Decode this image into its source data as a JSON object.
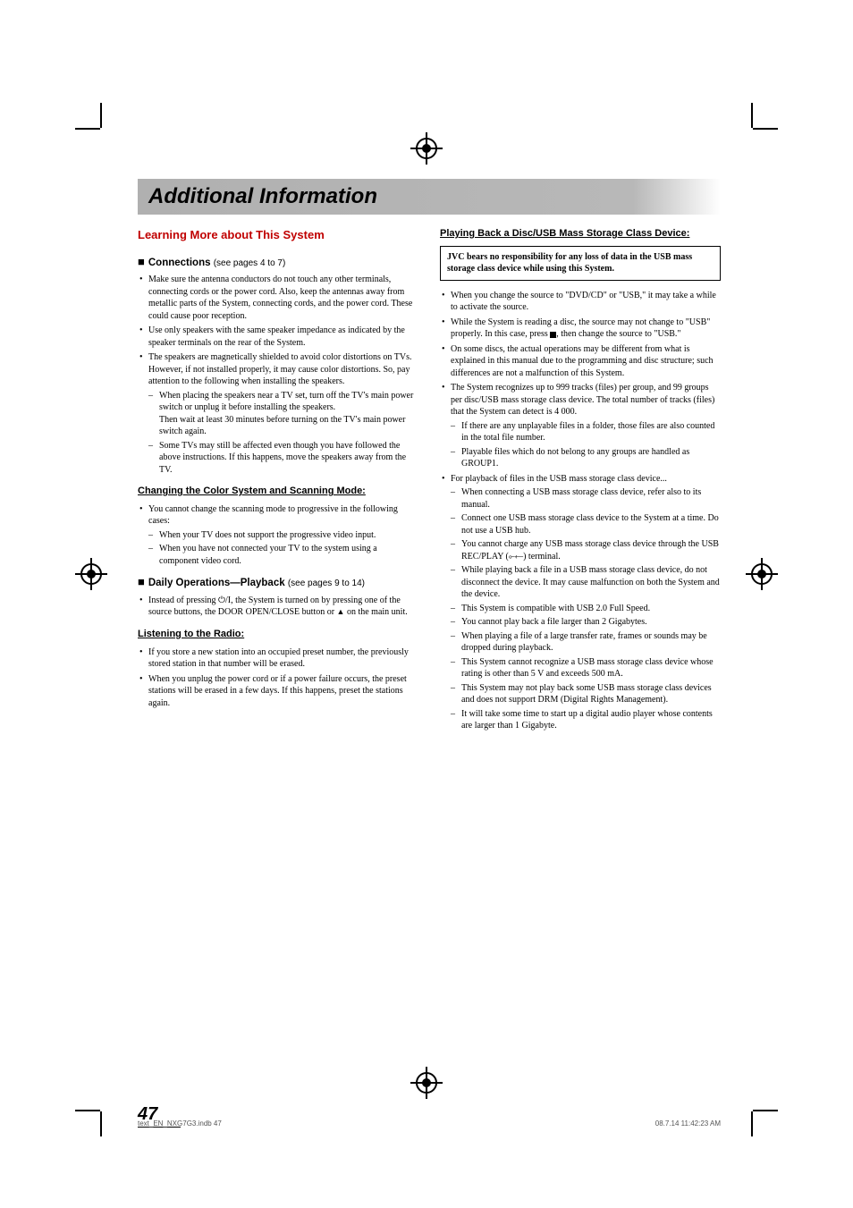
{
  "title": "Additional Information",
  "section_title": "Learning More about This System",
  "left": {
    "h_connections": "Connections",
    "h_connections_ref": "(see pages 4 to 7)",
    "conn_1": "Make sure the antenna conductors do not touch any other terminals, connecting cords or the power cord. Also, keep the antennas away from metallic parts of the System, connecting cords, and the power cord. These could cause poor reception.",
    "conn_2": "Use only speakers with the same speaker impedance as indicated by the speaker terminals on the rear of the System.",
    "conn_3": "The speakers are magnetically shielded to avoid color distortions on TVs. However, if not installed properly, it may cause color distortions. So, pay attention to the following when installing the speakers.",
    "conn_3a": "When placing the speakers near a TV set, turn off the TV's main power switch or unplug it before installing the speakers.",
    "conn_3a2": "Then wait at least 30 minutes before turning on the TV's main power switch again.",
    "conn_3b": "Some TVs may still be affected even though you have followed the above instructions. If this happens, move the speakers away from the TV.",
    "h_changing": "Changing the Color System and Scanning Mode:",
    "chg_1": "You cannot change the scanning mode to progressive in the following cases:",
    "chg_1a": "When your TV does not support the progressive video input.",
    "chg_1b": "When you have not connected your TV to the system using a component video cord.",
    "h_daily": "Daily Operations—Playback",
    "h_daily_ref": "(see pages 9 to 14)",
    "daily_1a": "Instead of pressing ",
    "daily_1b": ", the System is turned on by pressing one of the source buttons, the DOOR OPEN/CLOSE button or ",
    "daily_1c": " on the main unit.",
    "h_listening": "Listening to the Radio:",
    "listen_1": "If you store a new station into an occupied preset number, the previously stored station in that number will be erased.",
    "listen_2": "When you unplug the power cord or if a power failure occurs, the preset stations will be erased in a few days. If this happens, preset the stations again."
  },
  "right": {
    "h_playback": "Playing Back a Disc/USB Mass Storage Class Device:",
    "notebox": "JVC bears no responsibility for any loss of data in the USB mass storage class device while using this System.",
    "pb_1": "When you change the source to \"DVD/CD\" or \"USB,\" it may take a while to activate the source.",
    "pb_2a": "While the System is reading a disc, the source may not change to \"USB\" properly. In this case, press ",
    "pb_2b": ", then change the source to \"USB.\"",
    "pb_3": "On some discs, the actual operations may be different from what is explained in this manual due to the programming and disc structure; such differences are not a malfunction of this System.",
    "pb_4": "The System recognizes up to 999 tracks (files) per group, and 99 groups per disc/USB mass storage class device. The total number of tracks (files) that the System can detect is 4 000.",
    "pb_4a": "If there are any unplayable files in a folder, those files are also counted in the total file number.",
    "pb_4b": "Playable files which do not belong to any groups are handled as GROUP1.",
    "pb_5": "For playback of files in the USB mass storage class device...",
    "pb_5a": "When connecting a USB mass storage class device, refer also to its manual.",
    "pb_5b": "Connect one USB mass storage class device to the System at a time. Do not use a USB hub.",
    "pb_5c_a": "You cannot charge any USB mass storage class device through the USB REC/PLAY (",
    "pb_5c_b": ") terminal.",
    "pb_5d": "While playing back a file in a USB mass storage class device, do not disconnect the device. It may cause malfunction on both the System and the device.",
    "pb_5e": "This System is compatible with USB 2.0 Full Speed.",
    "pb_5f": "You cannot play back a file larger than 2 Gigabytes.",
    "pb_5g": "When playing a file of a large transfer rate, frames or sounds may be dropped during playback.",
    "pb_5h": "This System cannot recognize a USB mass storage class device whose rating is other than 5 V and exceeds 500 mA.",
    "pb_5i": "This System may not play back some USB mass storage class devices and does not support DRM (Digital Rights Management).",
    "pb_5j": "It will take some time to start up a digital audio player whose contents are larger than 1 Gigabyte."
  },
  "page_number": "47",
  "footer_left": "text_EN_NXG7G3.indb   47",
  "footer_right": "08.7.14   11:42:23 AM"
}
